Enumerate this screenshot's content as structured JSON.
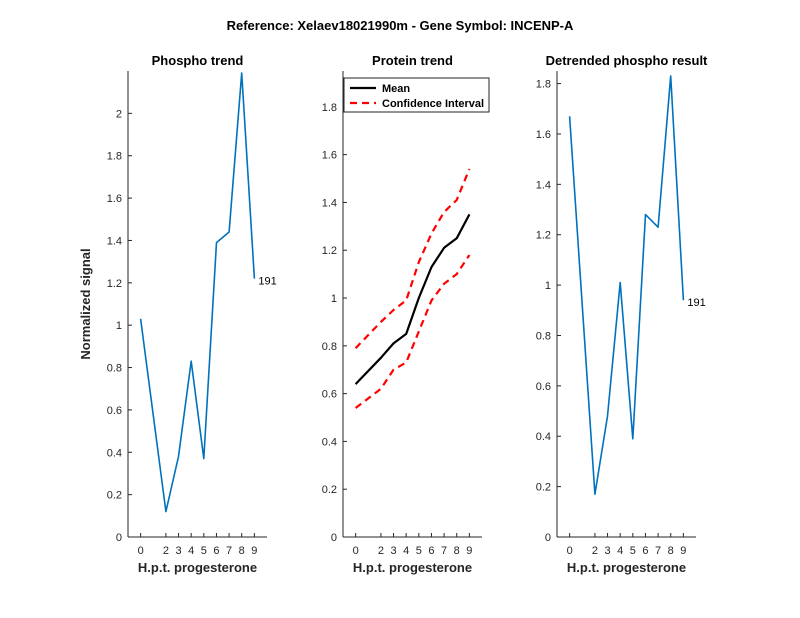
{
  "suptitle": "Reference:  Xelaev18021990m - Gene Symbol:  INCENP-A",
  "colors": {
    "phospho_line": "#0072BD",
    "mean_line": "#000000",
    "ci_line": "#FF0000",
    "axis": "#262626"
  },
  "chart_data": [
    {
      "type": "line",
      "title": "Phospho trend",
      "xlabel": "H.p.t. progesterone",
      "ylabel": "Normalized signal",
      "x": [
        0,
        2,
        3,
        4,
        5,
        6,
        7,
        8,
        9
      ],
      "xticks": [
        "0",
        "2",
        "3",
        "4",
        "5",
        "6",
        "7",
        "8",
        "9"
      ],
      "ylim": [
        0,
        2.2
      ],
      "yticks": [
        0,
        0.2,
        0.4,
        0.6,
        0.8,
        1,
        1.2,
        1.4,
        1.6,
        1.8,
        2
      ],
      "ytick_labels": [
        "0",
        "0.2",
        "0.4",
        "0.6",
        "0.8",
        "1",
        "1.2",
        "1.4",
        "1.6",
        "1.8",
        "2"
      ],
      "series": [
        {
          "values": [
            1.03,
            0.12,
            0.38,
            0.83,
            0.37,
            1.39,
            1.44,
            2.19,
            1.22
          ]
        }
      ],
      "annotation": {
        "text": "191",
        "x": 9,
        "y": 1.22
      }
    },
    {
      "type": "line",
      "title": "Protein trend",
      "xlabel": "H.p.t. progesterone",
      "ylabel": "",
      "x": [
        0,
        2,
        3,
        4,
        5,
        6,
        7,
        8,
        9
      ],
      "xticks": [
        "0",
        "2",
        "3",
        "4",
        "5",
        "6",
        "7",
        "8",
        "9"
      ],
      "ylim": [
        0,
        1.95
      ],
      "yticks": [
        0,
        0.2,
        0.4,
        0.6,
        0.8,
        1,
        1.2,
        1.4,
        1.6,
        1.8
      ],
      "ytick_labels": [
        "0",
        "0.2",
        "0.4",
        "0.6",
        "0.8",
        "1",
        "1.2",
        "1.4",
        "1.6",
        "1.8"
      ],
      "legend_position": "top-left",
      "series": [
        {
          "name": "Mean",
          "values": [
            0.64,
            0.75,
            0.81,
            0.85,
            1.0,
            1.13,
            1.21,
            1.25,
            1.35
          ]
        },
        {
          "name": "Confidence Interval",
          "values": [
            0.79,
            0.9,
            0.95,
            0.99,
            1.15,
            1.27,
            1.36,
            1.41,
            1.54
          ]
        },
        {
          "values": [
            0.54,
            0.62,
            0.7,
            0.73,
            0.86,
            0.99,
            1.06,
            1.1,
            1.18
          ]
        }
      ]
    },
    {
      "type": "line",
      "title": "Detrended phospho result",
      "xlabel": "H.p.t. progesterone",
      "ylabel": "",
      "x": [
        0,
        2,
        3,
        4,
        5,
        6,
        7,
        8,
        9
      ],
      "xticks": [
        "0",
        "2",
        "3",
        "4",
        "5",
        "6",
        "7",
        "8",
        "9"
      ],
      "ylim": [
        0,
        1.85
      ],
      "yticks": [
        0,
        0.2,
        0.4,
        0.6,
        0.8,
        1,
        1.2,
        1.4,
        1.6,
        1.8
      ],
      "ytick_labels": [
        "0",
        "0.2",
        "0.4",
        "0.6",
        "0.8",
        "1",
        "1.2",
        "1.4",
        "1.6",
        "1.8"
      ],
      "series": [
        {
          "values": [
            1.67,
            0.17,
            0.48,
            1.01,
            0.39,
            1.28,
            1.23,
            1.83,
            0.94
          ]
        }
      ],
      "annotation": {
        "text": "191",
        "x": 9,
        "y": 0.94
      }
    }
  ]
}
